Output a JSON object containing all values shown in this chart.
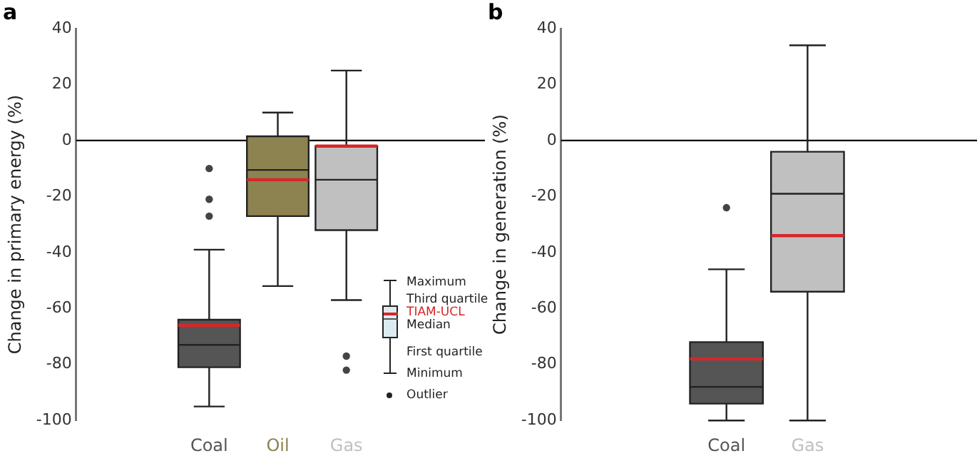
{
  "chart_data": [
    {
      "type": "box",
      "title": "a",
      "ylabel": "Change in primary energy (%)",
      "categories": [
        "Coal",
        "Oil",
        "Gas"
      ],
      "ylim": [
        -100,
        40
      ],
      "yticks": [
        -100,
        -80,
        -60,
        -40,
        -20,
        0,
        20,
        40
      ],
      "grid": false,
      "series": [
        {
          "colors": [
            "#555555",
            "#8c8350",
            "#c0c0c0"
          ],
          "boxes": [
            {
              "low": -95,
              "q1": -81,
              "median": -73,
              "q3": -64,
              "high": -39,
              "mean": -66,
              "outliers": [
                -10,
                -21,
                -27
              ]
            },
            {
              "low": -52,
              "q1": -27,
              "median": -10.5,
              "q3": 1.5,
              "high": 10,
              "mean": -14
            },
            {
              "low": -57,
              "q1": -32,
              "median": -14,
              "q3": -2,
              "high": 25,
              "mean": -2,
              "outliers": [
                -77,
                -82
              ]
            }
          ]
        }
      ],
      "ref_lines": [
        {
          "axis": "y",
          "value": 0,
          "color": "#000000"
        }
      ],
      "annotations": [
        "Maximum",
        "Third quartile",
        "TIAM-UCL",
        "Median",
        "First quartile",
        "Minimum",
        "Outlier"
      ]
    },
    {
      "type": "box",
      "title": "b",
      "ylabel": "Change in generation (%)",
      "categories": [
        "Coal",
        "Gas"
      ],
      "ylim": [
        -100,
        40
      ],
      "yticks": [
        -100,
        -80,
        -60,
        -40,
        -20,
        0,
        20,
        40
      ],
      "grid": false,
      "series": [
        {
          "colors": [
            "#555555",
            "#c0c0c0"
          ],
          "boxes": [
            {
              "low": -100,
              "q1": -94,
              "median": -88,
              "q3": -72,
              "high": -46,
              "mean": -78,
              "outliers": [
                -24
              ]
            },
            {
              "low": -100,
              "q1": -54,
              "median": -19,
              "q3": -4,
              "high": 34,
              "mean": -34
            }
          ]
        }
      ],
      "ref_lines": [
        {
          "axis": "y",
          "value": 0,
          "color": "#000000"
        }
      ]
    }
  ]
}
